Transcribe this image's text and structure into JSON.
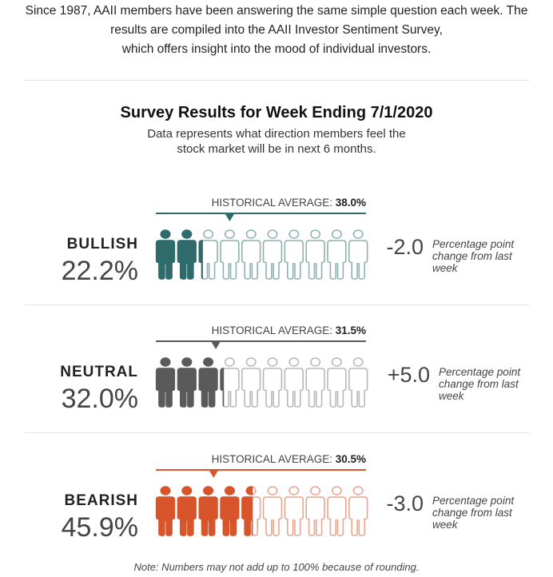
{
  "intro": {
    "line1": "Since 1987, AAII members have been answering the same simple question each week. The",
    "line2": "results are compiled into the AAII Investor Sentiment Survey,",
    "line3": "which offers insight into the mood of individual investors."
  },
  "chart_data": {
    "type": "pictograph",
    "title": "Survey Results for Week Ending 7/1/2020",
    "subtitle_line1": "Data represents what direction members feel the",
    "subtitle_line2": "stock market will be in next 6 months.",
    "hist_prefix": "HISTORICAL AVERAGE: ",
    "xlim": [
      0,
      100
    ],
    "icons_per_row": 10,
    "percent_per_icon": 10,
    "change_note": "Percentage point change from last week",
    "series": [
      {
        "category": "BULLISH",
        "value": 22.2,
        "value_label": "22.2%",
        "historical_average": 38.0,
        "historical_label": "38.0%",
        "change": -2.0,
        "change_label": "-2.0",
        "color": "#2e6b6a",
        "outline_color": "#8fb1ae"
      },
      {
        "category": "NEUTRAL",
        "value": 32.0,
        "value_label": "32.0%",
        "historical_average": 31.5,
        "historical_label": "31.5%",
        "change": 5.0,
        "change_label": "+5.0",
        "color": "#5a5a5a",
        "outline_color": "#b8b8b8"
      },
      {
        "category": "BEARISH",
        "value": 45.9,
        "value_label": "45.9%",
        "historical_average": 30.5,
        "historical_label": "30.5%",
        "change": -3.0,
        "change_label": "-3.0",
        "color": "#d8552b",
        "outline_color": "#e9a68f"
      }
    ],
    "note": "Note: Numbers may not add up to 100% because of rounding."
  }
}
